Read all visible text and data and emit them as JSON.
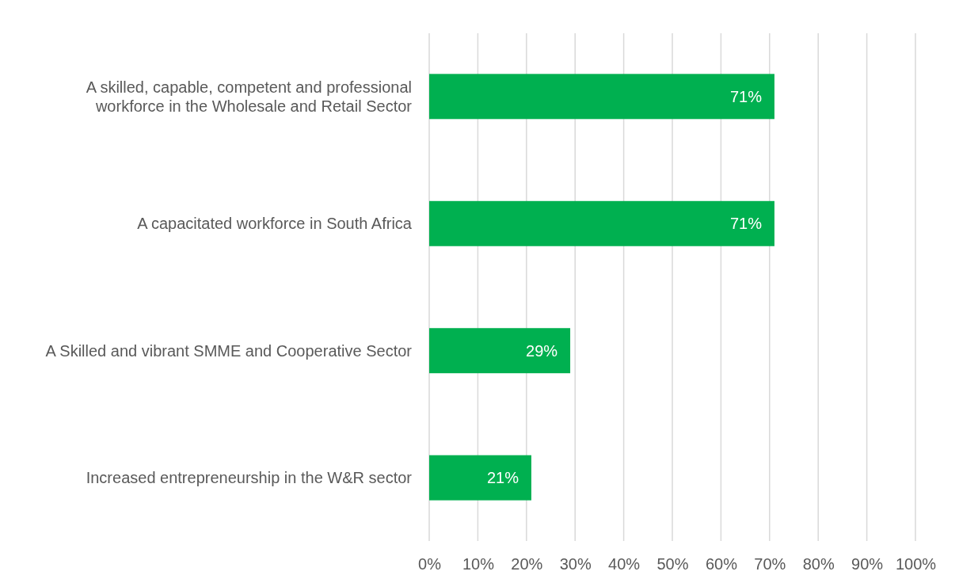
{
  "chart_data": {
    "type": "bar",
    "orientation": "horizontal",
    "categories": [
      "A skilled, capable, competent and professional workforce in the Wholesale and Retail Sector",
      "A capacitated workforce in South Africa",
      "A Skilled and vibrant SMME and Cooperative Sector",
      "Increased entrepreneurship in the W&R sector"
    ],
    "values": [
      71,
      71,
      29,
      21
    ],
    "value_labels": [
      "71%",
      "71%",
      "29%",
      "21%"
    ],
    "color": "#00b050",
    "xlim": [
      0,
      100
    ],
    "xticks": [
      {
        "value": 0,
        "label": "0%"
      },
      {
        "value": 10,
        "label": "10%"
      },
      {
        "value": 20,
        "label": "20%"
      },
      {
        "value": 30,
        "label": "30%"
      },
      {
        "value": 40,
        "label": "40%"
      },
      {
        "value": 50,
        "label": "50%"
      },
      {
        "value": 60,
        "label": "60%"
      },
      {
        "value": 70,
        "label": "70%"
      },
      {
        "value": 80,
        "label": "80%"
      },
      {
        "value": 90,
        "label": "90%"
      },
      {
        "value": 100,
        "label": "100%"
      }
    ],
    "grid": "x"
  }
}
